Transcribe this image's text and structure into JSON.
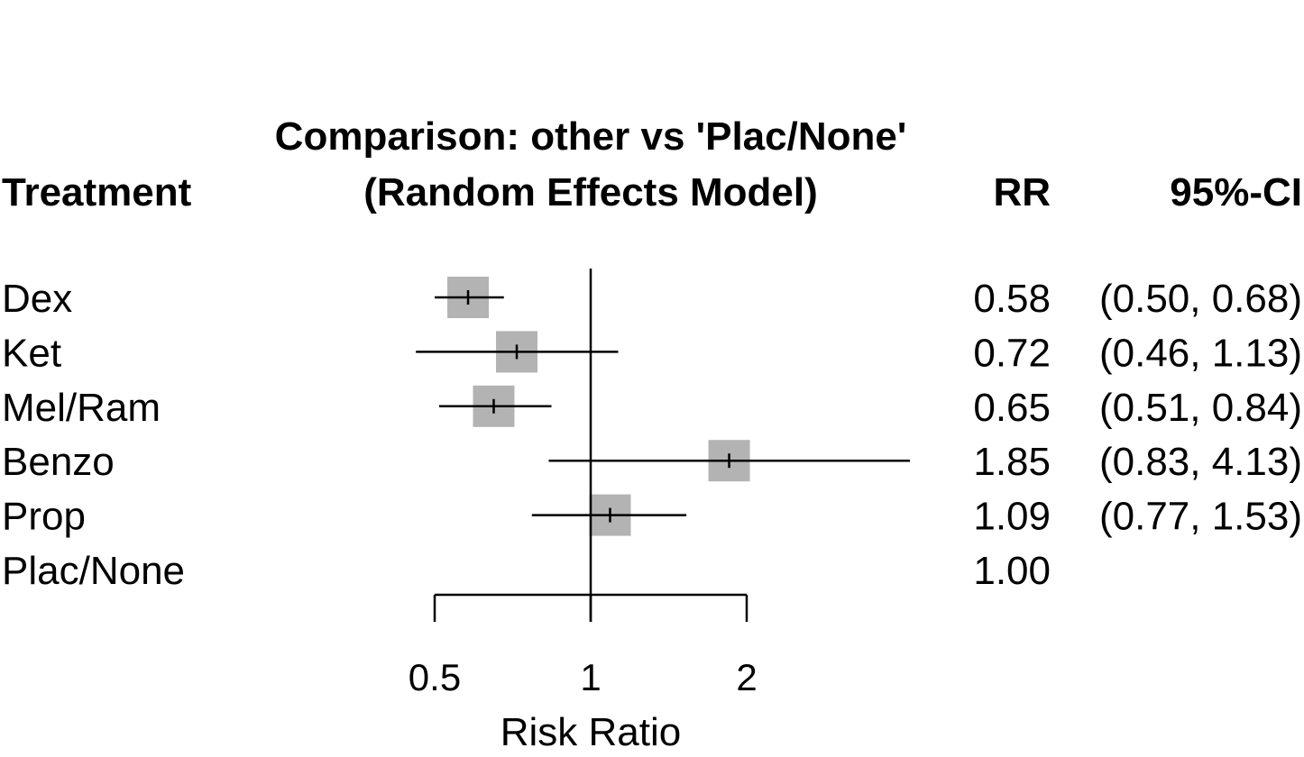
{
  "chart_data": {
    "type": "forest",
    "title_lines": [
      "Comparison: other vs 'Plac/None'",
      "(Random Effects Model)"
    ],
    "columns": {
      "treatment": "Treatment",
      "rr": "RR",
      "ci": "95%-CI"
    },
    "xlabel": "Risk Ratio",
    "x_scale": "log",
    "x_ticks": [
      0.5,
      1,
      2
    ],
    "x_tick_labels": [
      "0.5",
      "1",
      "2"
    ],
    "xlim": [
      0.5,
      2
    ],
    "reference_line": 1,
    "rows": [
      {
        "treatment": "Dex",
        "rr": 0.58,
        "lower": 0.5,
        "upper": 0.68,
        "rr_text": "0.58",
        "ci_text": "(0.50, 0.68)"
      },
      {
        "treatment": "Ket",
        "rr": 0.72,
        "lower": 0.46,
        "upper": 1.13,
        "rr_text": "0.72",
        "ci_text": "(0.46, 1.13)"
      },
      {
        "treatment": "Mel/Ram",
        "rr": 0.65,
        "lower": 0.51,
        "upper": 0.84,
        "rr_text": "0.65",
        "ci_text": "(0.51, 0.84)"
      },
      {
        "treatment": "Benzo",
        "rr": 1.85,
        "lower": 0.83,
        "upper": 4.13,
        "rr_text": "1.85",
        "ci_text": "(0.83, 4.13)"
      },
      {
        "treatment": "Prop",
        "rr": 1.09,
        "lower": 0.77,
        "upper": 1.53,
        "rr_text": "1.09",
        "ci_text": "(0.77, 1.53)"
      },
      {
        "treatment": "Plac/None",
        "rr": 1.0,
        "lower": null,
        "upper": null,
        "rr_text": "1.00",
        "ci_text": ""
      }
    ],
    "colors": {
      "square": "#b3b3b3",
      "line": "#000000"
    }
  }
}
